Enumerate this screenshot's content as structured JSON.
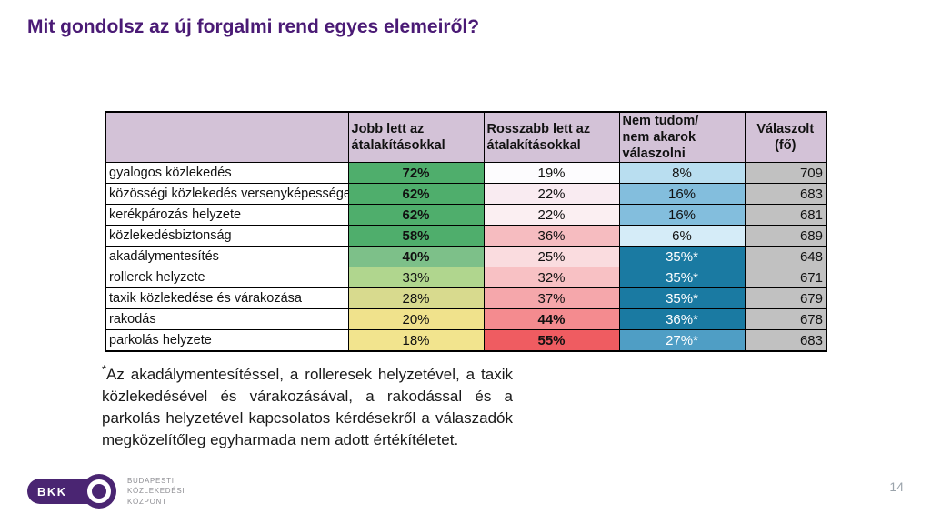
{
  "title": "Mit gondolsz az új forgalmi rend egyes elemeiről?",
  "colors": {
    "title_color": "#4a1a75",
    "header_bg": "#d3c2d7",
    "responded_bg": "#c1c1c1",
    "brand_purple": "#4a2572",
    "border": "#000000"
  },
  "table": {
    "headers": [
      "",
      "Jobb lett az\nátalakításokkal",
      "Rosszabb lett az\nátalakításokkal",
      "Nem tudom/\nnem akarok válaszolni",
      "Válaszolt\n(fő)"
    ],
    "rows": [
      {
        "label": "gyalogos közlekedés",
        "cells": [
          {
            "text": "72%",
            "bg": "#4fae6c",
            "bold": true
          },
          {
            "text": "19%",
            "bg": "#fdfcfe",
            "bold": false
          },
          {
            "text": "8%",
            "bg": "#b9def0",
            "bold": false
          }
        ],
        "responded": "709"
      },
      {
        "label": "közösségi közlekedés versenyképessége",
        "cells": [
          {
            "text": "62%",
            "bg": "#4fae6c",
            "bold": true
          },
          {
            "text": "22%",
            "bg": "#f9ebf1",
            "bold": false
          },
          {
            "text": "16%",
            "bg": "#83bedd",
            "bold": false
          }
        ],
        "responded": "683"
      },
      {
        "label": "kerékpározás helyzete",
        "cells": [
          {
            "text": "62%",
            "bg": "#4fae6c",
            "bold": true
          },
          {
            "text": "22%",
            "bg": "#fbeff2",
            "bold": false
          },
          {
            "text": "16%",
            "bg": "#83bedd",
            "bold": false
          }
        ],
        "responded": "681"
      },
      {
        "label": "közlekedésbiztonság",
        "cells": [
          {
            "text": "58%",
            "bg": "#4fae6c",
            "bold": true
          },
          {
            "text": "36%",
            "bg": "#f6bcc0",
            "bold": false
          },
          {
            "text": "6%",
            "bg": "#d5ecf8",
            "bold": false
          }
        ],
        "responded": "689"
      },
      {
        "label": "akadálymentesítés",
        "cells": [
          {
            "text": "40%",
            "bg": "#7dc089",
            "bold": true
          },
          {
            "text": "25%",
            "bg": "#fadcdf",
            "bold": false
          },
          {
            "text": "35%*",
            "bg": "#1a7aa2",
            "bold": false,
            "fg": "#ffffff"
          }
        ],
        "responded": "648"
      },
      {
        "label": "rollerek helyzete",
        "cells": [
          {
            "text": "33%",
            "bg": "#b0d68e",
            "bold": false
          },
          {
            "text": "32%",
            "bg": "#f8c1c4",
            "bold": false
          },
          {
            "text": "35%*",
            "bg": "#1a7aa2",
            "bold": false,
            "fg": "#ffffff"
          }
        ],
        "responded": "671"
      },
      {
        "label": "taxik közlekedése és várakozása",
        "cells": [
          {
            "text": "28%",
            "bg": "#d8da8e",
            "bold": false
          },
          {
            "text": "37%",
            "bg": "#f5a7ab",
            "bold": false
          },
          {
            "text": "35%*",
            "bg": "#1a7aa2",
            "bold": false,
            "fg": "#ffffff"
          }
        ],
        "responded": "679"
      },
      {
        "label": "rakodás",
        "cells": [
          {
            "text": "20%",
            "bg": "#f0e28c",
            "bold": false
          },
          {
            "text": "44%",
            "bg": "#f48b8f",
            "bold": true
          },
          {
            "text": "36%*",
            "bg": "#1a7aa2",
            "bold": false,
            "fg": "#ffffff"
          }
        ],
        "responded": "678"
      },
      {
        "label": "parkolás helyzete",
        "cells": [
          {
            "text": "18%",
            "bg": "#f2e48e",
            "bold": false
          },
          {
            "text": "55%",
            "bg": "#ef5c61",
            "bold": true
          },
          {
            "text": "27%*",
            "bg": "#4f9ec5",
            "bold": false,
            "fg": "#ffffff"
          }
        ],
        "responded": "683"
      }
    ]
  },
  "footnote": {
    "asterisk": "*",
    "text": "Az akadálymentesítéssel, a rolleresek helyzetével, a taxik közlekedésével és várakozásával, a rakodással és a parkolás helyzetével kapcsolatos kérdésekről a válaszadók megközelítőleg egyharmada nem adott értékítéletet."
  },
  "logo": {
    "abbr": "BKK",
    "caption_lines": [
      "BUDAPESTI",
      "KÖZLEKEDÉSI",
      "KÖZPONT"
    ]
  },
  "page_number": "14"
}
